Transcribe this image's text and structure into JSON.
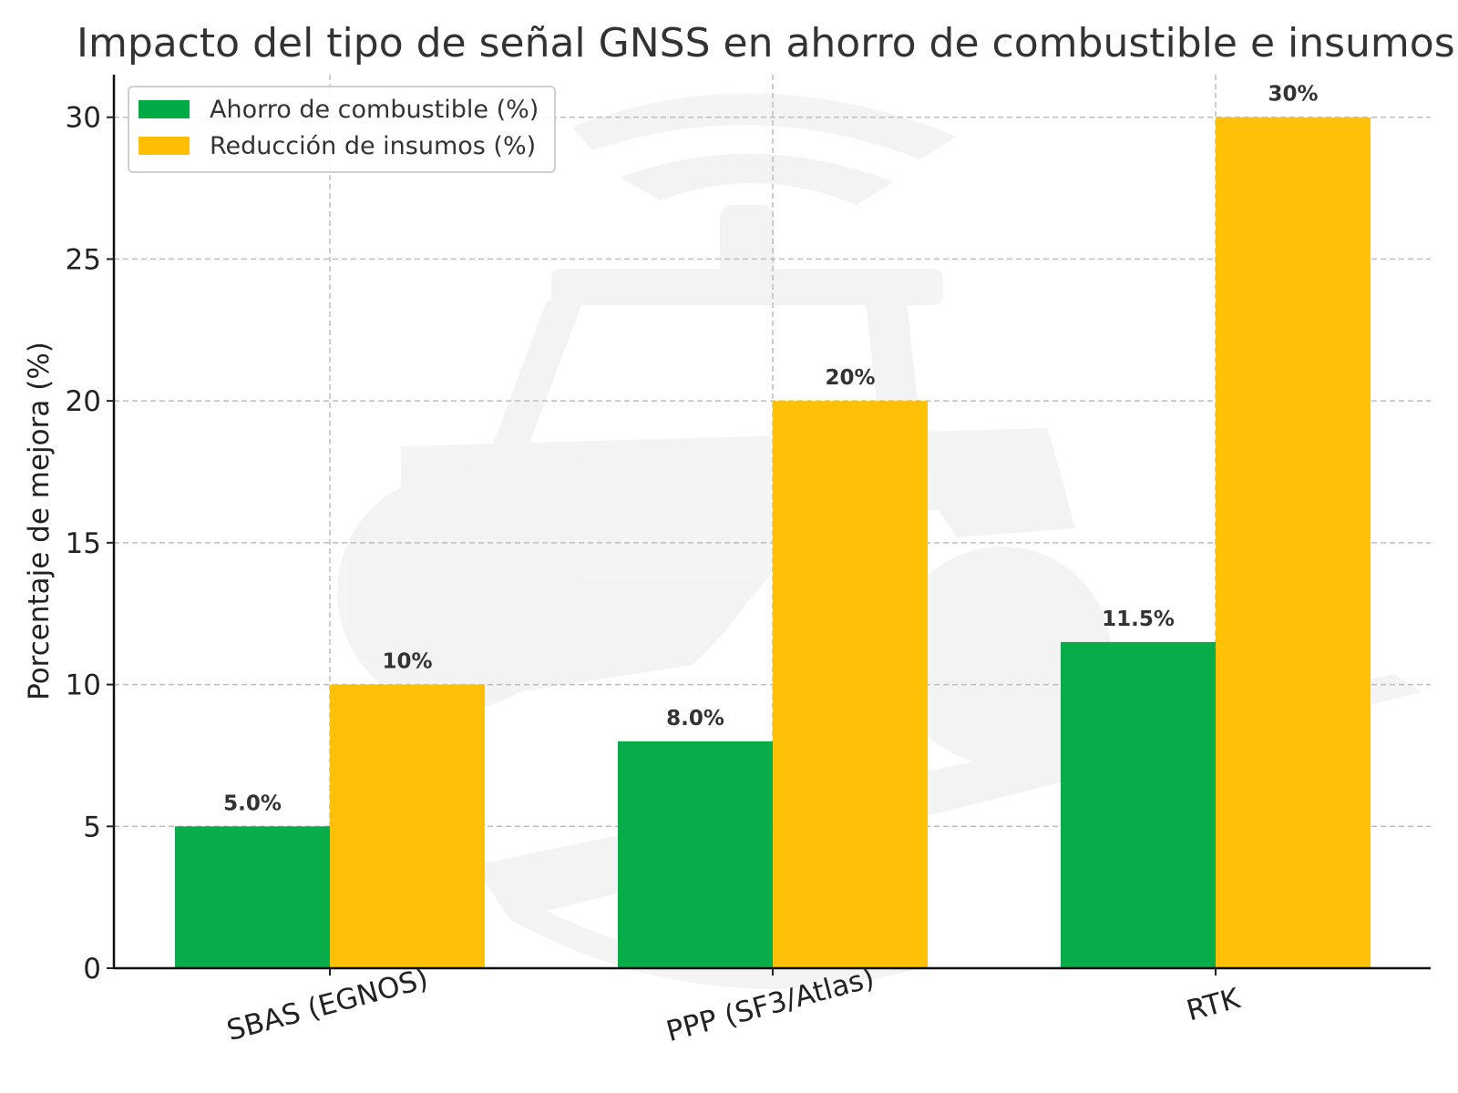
{
  "chart_data": {
    "type": "bar",
    "title": "Impacto del tipo de señal GNSS en ahorro de combustible e insumos",
    "xlabel": "",
    "ylabel": "Porcentaje de mejora (%)",
    "categories": [
      "SBAS (EGNOS)",
      "PPP (SF3/Atlas)",
      "RTK"
    ],
    "series": [
      {
        "name": "Ahorro de combustible (%)",
        "values": [
          5.0,
          8.0,
          11.5
        ],
        "labels": [
          "5.0%",
          "8.0%",
          "11.5%"
        ],
        "color": "#00aa44"
      },
      {
        "name": "Reducción de insumos (%)",
        "values": [
          10,
          20,
          30
        ],
        "labels": [
          "10%",
          "20%",
          "30%"
        ],
        "color": "#ffbf00"
      }
    ],
    "ylim": [
      0,
      31.5
    ],
    "yticks": [
      0,
      5,
      10,
      15,
      20,
      25,
      30
    ],
    "grid": true,
    "legend_position": "top-left",
    "background_watermark": "tractor-with-signal-icon"
  }
}
